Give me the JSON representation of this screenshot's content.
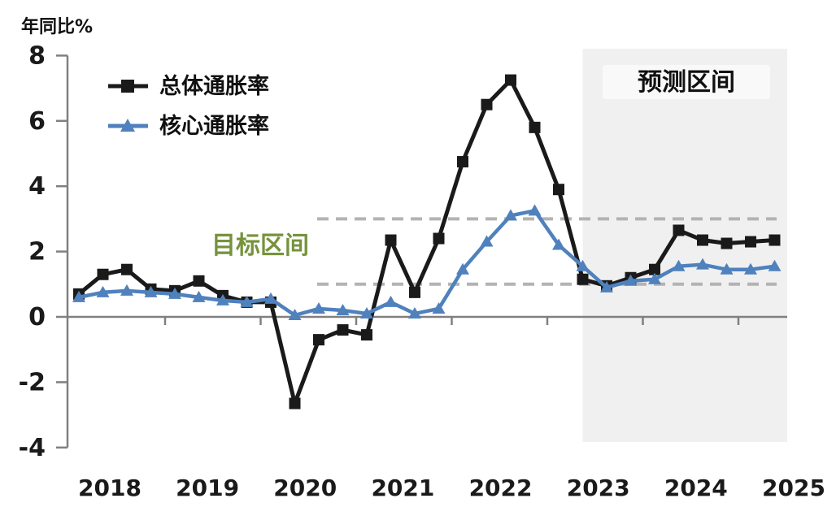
{
  "chart": {
    "y_axis_title": "年同比%",
    "legend_headline": "总体通胀率",
    "legend_core": "核心通胀率",
    "forecast_label": "预测区间",
    "target_label": "目标区间",
    "colors": {
      "headline": "#1a1a1a",
      "core": "#4f81bd",
      "axis": "#808080",
      "target_dash": "#b3b3b3",
      "forecast_bg": "#f0f0f0",
      "forecast_label_bg": "#fbfbfb",
      "target_text": "#76923c"
    }
  },
  "chart_data": {
    "type": "line",
    "title": "",
    "ylabel": "年同比%",
    "xlabel": "",
    "grid": false,
    "legend_position": "top-left-inside",
    "ylim": [
      -4,
      8
    ],
    "y_ticks": [
      8,
      6,
      4,
      2,
      0,
      -2,
      -4
    ],
    "x_tick_labels": [
      "2018",
      "2019",
      "2020",
      "2021",
      "2022",
      "2023",
      "2024",
      "2025"
    ],
    "categories": [
      "2018Q1",
      "2018Q2",
      "2018Q3",
      "2018Q4",
      "2019Q1",
      "2019Q2",
      "2019Q3",
      "2019Q4",
      "2020Q1",
      "2020Q2",
      "2020Q3",
      "2020Q4",
      "2021Q1",
      "2021Q2",
      "2021Q3",
      "2021Q4",
      "2022Q1",
      "2022Q2",
      "2022Q3",
      "2022Q4",
      "2023Q1",
      "2023Q2",
      "2023Q3",
      "2023Q4",
      "2024Q1",
      "2024Q2",
      "2024Q3",
      "2024Q4",
      "2025Q1",
      "2025Q2"
    ],
    "target_band": [
      1,
      3
    ],
    "forecast_start": "2023Q2",
    "series": [
      {
        "name": "总体通胀率",
        "marker": "square",
        "color": "#1a1a1a",
        "values": [
          0.7,
          1.3,
          1.45,
          0.85,
          0.8,
          1.1,
          0.65,
          0.45,
          0.45,
          -2.65,
          -0.7,
          -0.4,
          -0.55,
          2.35,
          0.75,
          2.4,
          4.75,
          6.5,
          7.25,
          5.8,
          3.9,
          1.15,
          0.95,
          1.2,
          1.45,
          2.65,
          2.35,
          2.25,
          2.3,
          2.35
        ]
      },
      {
        "name": "核心通胀率",
        "marker": "triangle",
        "color": "#4f81bd",
        "values": [
          0.6,
          0.75,
          0.8,
          0.75,
          0.7,
          0.6,
          0.5,
          0.45,
          0.55,
          0.05,
          0.25,
          0.2,
          0.1,
          0.45,
          0.1,
          0.25,
          1.45,
          2.3,
          3.1,
          3.25,
          2.2,
          1.55,
          0.9,
          1.1,
          1.15,
          1.55,
          1.6,
          1.45,
          1.45,
          1.55
        ]
      }
    ]
  }
}
